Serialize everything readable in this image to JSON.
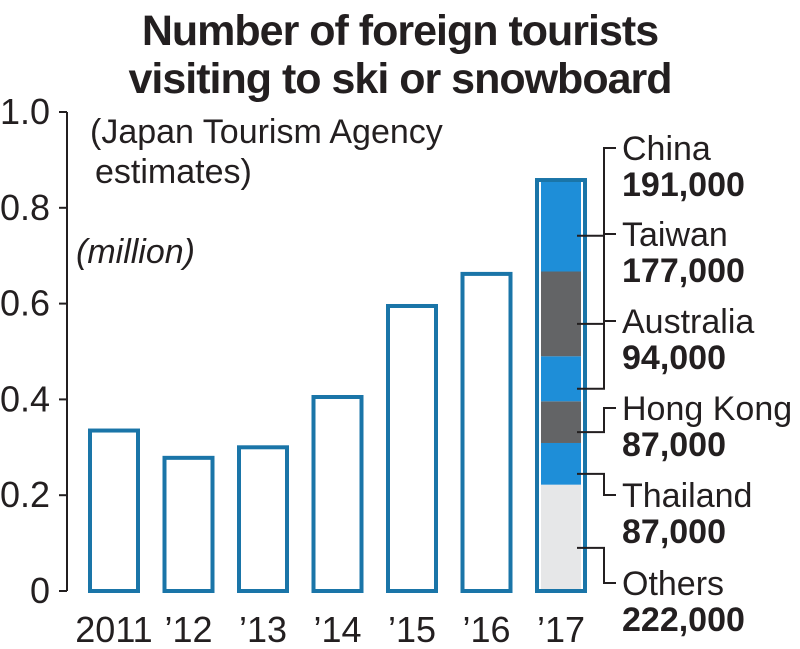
{
  "title": {
    "line1": "Number of foreign tourists",
    "line2": "visiting to ski or snowboard"
  },
  "note": {
    "line1": "(Japan Tourism Agency",
    "line2": "estimates)"
  },
  "unit": "(million)",
  "colors": {
    "bar_outline": "#1a75a8",
    "blue": "#1e8ed8",
    "gray": "#636466",
    "light": "#e6e7e8",
    "text": "#231f20"
  },
  "chart_data": {
    "type": "bar",
    "title": "Number of foreign tourists visiting to ski or snowboard",
    "ylabel": "(million)",
    "ylim": [
      0,
      1.0
    ],
    "yticks": [
      "0",
      "0.2",
      "0.4",
      "0.6",
      "0.8",
      "1.0"
    ],
    "categories": [
      "2011",
      "’12",
      "’13",
      "’14",
      "’15",
      "’16",
      "’17"
    ],
    "values": [
      0.335,
      0.278,
      0.3,
      0.405,
      0.595,
      0.662,
      0.858
    ],
    "breakdown_2017": [
      {
        "name": "Others",
        "count": "222,000",
        "value": 0.222,
        "color": "light"
      },
      {
        "name": "Thailand",
        "count": "87,000",
        "value": 0.087,
        "color": "blue"
      },
      {
        "name": "Hong Kong",
        "count": "87,000",
        "value": 0.087,
        "color": "gray"
      },
      {
        "name": "Australia",
        "count": "94,000",
        "value": 0.094,
        "color": "blue"
      },
      {
        "name": "Taiwan",
        "count": "177,000",
        "value": 0.177,
        "color": "gray"
      },
      {
        "name": "China",
        "count": "191,000",
        "value": 0.191,
        "color": "blue"
      }
    ]
  }
}
